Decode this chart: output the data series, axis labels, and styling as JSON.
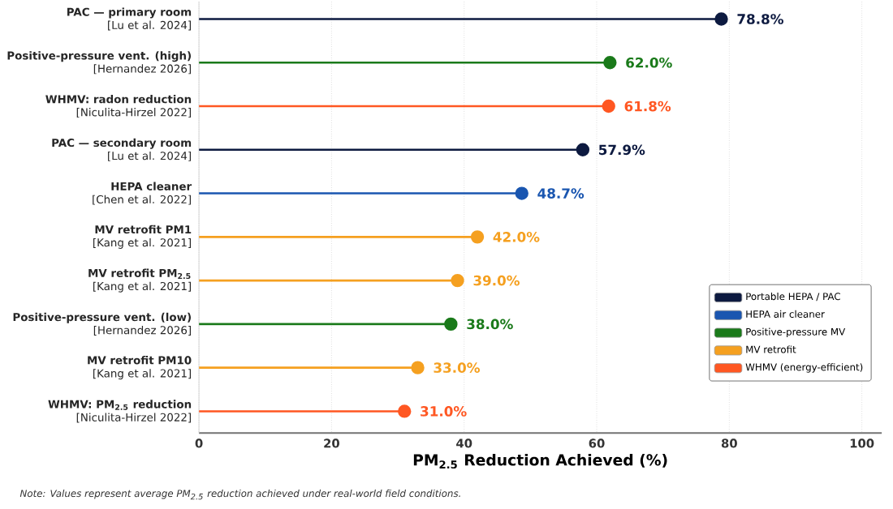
{
  "chart_data": {
    "type": "lollipop",
    "orientation": "horizontal",
    "categories": [
      "**PAC — primary room**\n[Lu et al. 2024]",
      "**Positive-pressure vent. (high)**\n[Hernandez 2026]",
      "**WHMV: radon reduction**\n[Niculita-Hirzel 2022]",
      "**PAC — secondary room**\n[Lu et al. 2024]",
      "**HEPA cleaner**\n[Chen et al. 2022]",
      "**MV retrofit PM1**\n[Kang et al. 2021]",
      "**MV retrofit PM$_{2.5}$**\n[Kang et al. 2021]",
      "**Positive-pressure vent. (low)**\n[Hernandez 2026]",
      "**MV retrofit PM10**\n[Kang et al. 2021]",
      "**WHMV: PM$_{2.5}$ reduction**\n[Niculita-Hirzel 2022]"
    ],
    "series": [
      {
        "name": "Portable HEPA / PAC",
        "color": "#0d1a40",
        "values": [
          78.8,
          null,
          null,
          57.9,
          null,
          null,
          null,
          null,
          null,
          null
        ],
        "value_labels": [
          "78.8%",
          null,
          null,
          "57.9%",
          null,
          null,
          null,
          null,
          null,
          null
        ]
      },
      {
        "name": "HEPA air cleaner",
        "color": "#1a56b0",
        "values": [
          null,
          null,
          null,
          null,
          48.7,
          null,
          null,
          null,
          null,
          null
        ],
        "value_labels": [
          null,
          null,
          null,
          null,
          "48.7%",
          null,
          null,
          null,
          null,
          null
        ]
      },
      {
        "name": "Positive-pressure MV",
        "color": "#1a7a1a",
        "values": [
          null,
          62.0,
          null,
          null,
          null,
          null,
          null,
          38.0,
          null,
          null
        ],
        "value_labels": [
          null,
          "62.0%",
          null,
          null,
          null,
          null,
          null,
          "38.0%",
          null,
          null
        ]
      },
      {
        "name": "MV retrofit",
        "color": "#f5a020",
        "values": [
          null,
          null,
          null,
          null,
          null,
          42.0,
          39.0,
          null,
          33.0,
          null
        ],
        "value_labels": [
          null,
          null,
          null,
          null,
          null,
          "42.0%",
          "39.0%",
          null,
          "33.0%",
          null
        ]
      },
      {
        "name": "WHMV (energy-efficient)",
        "color": "#ff5722",
        "values": [
          null,
          null,
          61.8,
          null,
          null,
          null,
          null,
          null,
          null,
          31.0
        ],
        "value_labels": [
          null,
          null,
          "61.8%",
          null,
          null,
          null,
          null,
          null,
          null,
          "31.0%"
        ]
      }
    ],
    "xlabel": "PM$_{2.5}$ Reduction Achieved (%)",
    "xlim": [
      0,
      103
    ],
    "xticks": [
      0,
      20,
      40,
      60,
      80,
      100
    ],
    "grid": "x",
    "legend": "bottom right",
    "marker": "circle",
    "annotations": [
      "Note: Values represent average PM$_{2.5}$ reduction achieved under real-world field conditions."
    ]
  }
}
